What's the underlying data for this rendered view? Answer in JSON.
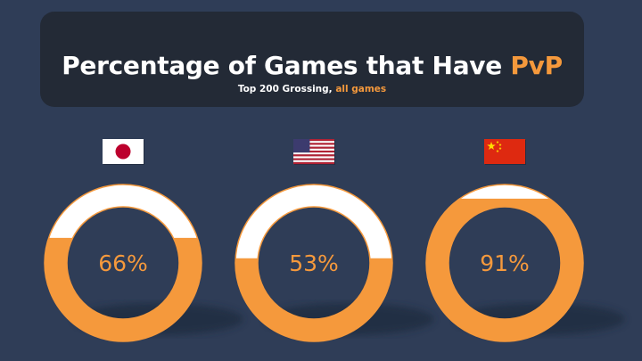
{
  "header": {
    "title_main": "Percentage of Games that Have ",
    "title_accent": "PvP",
    "subtitle_main": "Top 200 Grossing, ",
    "subtitle_accent": "all games"
  },
  "colors": {
    "background": "#2f3d57",
    "panel": "#232a36",
    "accent": "#f5993c",
    "empty": "#ffffff"
  },
  "chart_data": {
    "type": "donut-fill",
    "categories": [
      "Japan",
      "United States",
      "China"
    ],
    "flags": [
      "japan-flag",
      "usa-flag",
      "china-flag"
    ],
    "values": [
      66,
      53,
      91
    ],
    "labels": [
      "66%",
      "53%",
      "91%"
    ],
    "unit": "%"
  }
}
